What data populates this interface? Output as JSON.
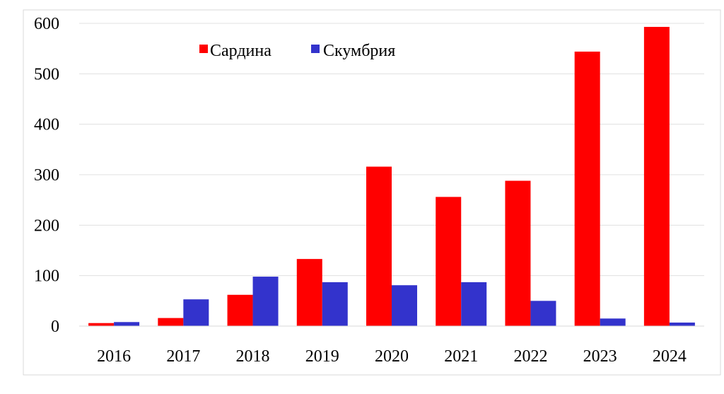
{
  "chart_data": {
    "type": "bar",
    "categories": [
      "2016",
      "2017",
      "2018",
      "2019",
      "2020",
      "2021",
      "2022",
      "2023",
      "2024"
    ],
    "series": [
      {
        "name": "Сардина",
        "color": "#ff0000",
        "values": [
          6,
          16,
          62,
          133,
          316,
          256,
          288,
          544,
          593
        ]
      },
      {
        "name": "Скумбрия",
        "color": "#3333cc",
        "values": [
          8,
          53,
          98,
          87,
          81,
          87,
          50,
          15,
          7
        ]
      }
    ],
    "ylim": [
      0,
      600
    ],
    "yticks": [
      "0",
      "100",
      "200",
      "300",
      "400",
      "500",
      "600"
    ],
    "grid": true,
    "legend_position": "top-center",
    "title": "",
    "xlabel": "",
    "ylabel": ""
  }
}
